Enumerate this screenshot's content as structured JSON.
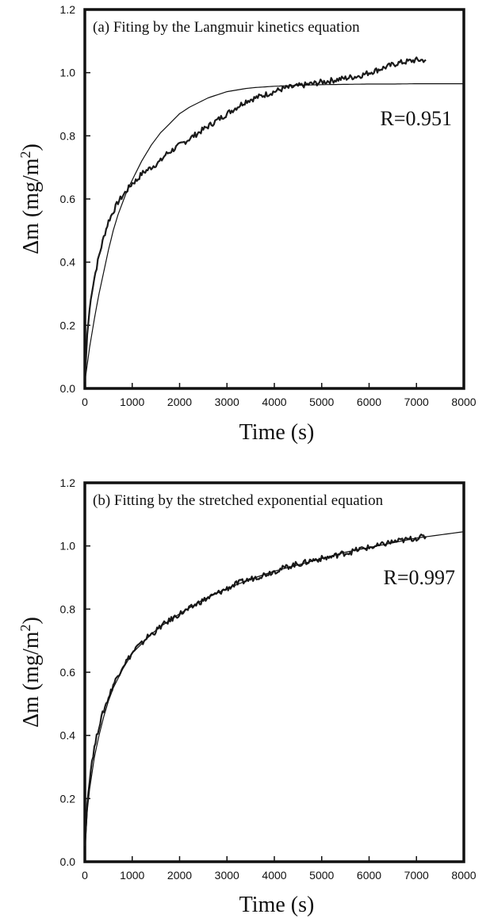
{
  "chart_data": [
    {
      "type": "line",
      "title": "(a) Fiting by the Langmuir kinetics equation",
      "annotation": "R=0.951",
      "xlabel": "Time (s)",
      "ylabel_main": "Δm (mg/m",
      "ylabel_sup": "2",
      "ylabel_close": ")",
      "xlim": [
        0,
        8000
      ],
      "ylim": [
        0,
        1.2
      ],
      "xticks": [
        0,
        1000,
        2000,
        3000,
        4000,
        5000,
        6000,
        7000,
        8000
      ],
      "yticks": [
        "0.0",
        "0.2",
        "0.4",
        "0.6",
        "0.8",
        "1.0",
        "1.2"
      ],
      "grid": false,
      "series": [
        {
          "style": "noisy",
          "x": [
            0,
            50,
            100,
            150,
            200,
            300,
            400,
            500,
            600,
            700,
            800,
            900,
            1000,
            1100,
            1200,
            1300,
            1400,
            1500,
            1600,
            1700,
            1800,
            1900,
            2000,
            2200,
            2400,
            2600,
            2800,
            3000,
            3200,
            3400,
            3600,
            3800,
            4000,
            4200,
            4400,
            4600,
            4800,
            5000,
            5200,
            5400,
            5600,
            5800,
            6000,
            6200,
            6400,
            6600,
            6800,
            7000,
            7200
          ],
          "y": [
            0.02,
            0.17,
            0.25,
            0.31,
            0.35,
            0.42,
            0.48,
            0.53,
            0.56,
            0.59,
            0.61,
            0.63,
            0.65,
            0.66,
            0.68,
            0.69,
            0.7,
            0.71,
            0.72,
            0.74,
            0.75,
            0.76,
            0.77,
            0.79,
            0.81,
            0.83,
            0.85,
            0.87,
            0.89,
            0.91,
            0.92,
            0.93,
            0.94,
            0.95,
            0.955,
            0.96,
            0.965,
            0.97,
            0.975,
            0.98,
            0.985,
            0.99,
            1.0,
            1.01,
            1.02,
            1.03,
            1.035,
            1.04,
            1.04
          ]
        },
        {
          "style": "smooth",
          "x": [
            0,
            100,
            200,
            300,
            400,
            500,
            600,
            700,
            800,
            900,
            1000,
            1100,
            1200,
            1400,
            1600,
            1800,
            2000,
            2200,
            2400,
            2600,
            2800,
            3000,
            3200,
            3400,
            3600,
            3800,
            4000,
            4500,
            5000,
            5500,
            6000,
            6500,
            7000,
            7500,
            8000
          ],
          "y": [
            0.02,
            0.13,
            0.22,
            0.3,
            0.37,
            0.44,
            0.5,
            0.55,
            0.59,
            0.63,
            0.66,
            0.69,
            0.72,
            0.77,
            0.81,
            0.84,
            0.87,
            0.89,
            0.905,
            0.92,
            0.93,
            0.94,
            0.945,
            0.95,
            0.953,
            0.955,
            0.957,
            0.96,
            0.962,
            0.963,
            0.964,
            0.964,
            0.965,
            0.965,
            0.965
          ]
        }
      ]
    },
    {
      "type": "line",
      "title": "(b) Fitting by the stretched exponential  equation",
      "annotation": "R=0.997",
      "xlabel": "Time (s)",
      "ylabel_main": "Δm (mg/m",
      "ylabel_sup": "2",
      "ylabel_close": ")",
      "xlim": [
        0,
        8000
      ],
      "ylim": [
        0,
        1.2
      ],
      "xticks": [
        0,
        1000,
        2000,
        3000,
        4000,
        5000,
        6000,
        7000,
        8000
      ],
      "yticks": [
        "0.0",
        "0.2",
        "0.4",
        "0.6",
        "0.8",
        "1.0",
        "1.2"
      ],
      "grid": false,
      "series": [
        {
          "style": "noisy",
          "x": [
            0,
            50,
            100,
            150,
            200,
            300,
            400,
            500,
            600,
            700,
            800,
            900,
            1000,
            1100,
            1200,
            1300,
            1400,
            1500,
            1600,
            1700,
            1800,
            1900,
            2000,
            2200,
            2400,
            2600,
            2800,
            3000,
            3200,
            3400,
            3600,
            3800,
            4000,
            4200,
            4400,
            4600,
            4800,
            5000,
            5200,
            5400,
            5600,
            5800,
            6000,
            6200,
            6400,
            6600,
            6800,
            7000,
            7200
          ],
          "y": [
            0.05,
            0.18,
            0.26,
            0.32,
            0.36,
            0.43,
            0.48,
            0.52,
            0.56,
            0.59,
            0.62,
            0.64,
            0.66,
            0.68,
            0.69,
            0.71,
            0.72,
            0.73,
            0.745,
            0.755,
            0.765,
            0.775,
            0.785,
            0.8,
            0.82,
            0.835,
            0.85,
            0.865,
            0.88,
            0.89,
            0.9,
            0.91,
            0.92,
            0.93,
            0.94,
            0.945,
            0.955,
            0.96,
            0.965,
            0.975,
            0.98,
            0.99,
            0.995,
            1.0,
            1.01,
            1.015,
            1.02,
            1.025,
            1.03
          ]
        },
        {
          "style": "smooth",
          "x": [
            0,
            50,
            100,
            200,
            300,
            400,
            500,
            600,
            800,
            1000,
            1200,
            1400,
            1600,
            1800,
            2000,
            2500,
            3000,
            3500,
            4000,
            4500,
            5000,
            5500,
            6000,
            6500,
            7000,
            7500,
            8000
          ],
          "y": [
            0.02,
            0.16,
            0.23,
            0.33,
            0.4,
            0.46,
            0.51,
            0.55,
            0.61,
            0.66,
            0.69,
            0.72,
            0.745,
            0.765,
            0.785,
            0.83,
            0.865,
            0.895,
            0.92,
            0.94,
            0.96,
            0.98,
            0.995,
            1.01,
            1.025,
            1.035,
            1.045
          ]
        }
      ]
    }
  ]
}
